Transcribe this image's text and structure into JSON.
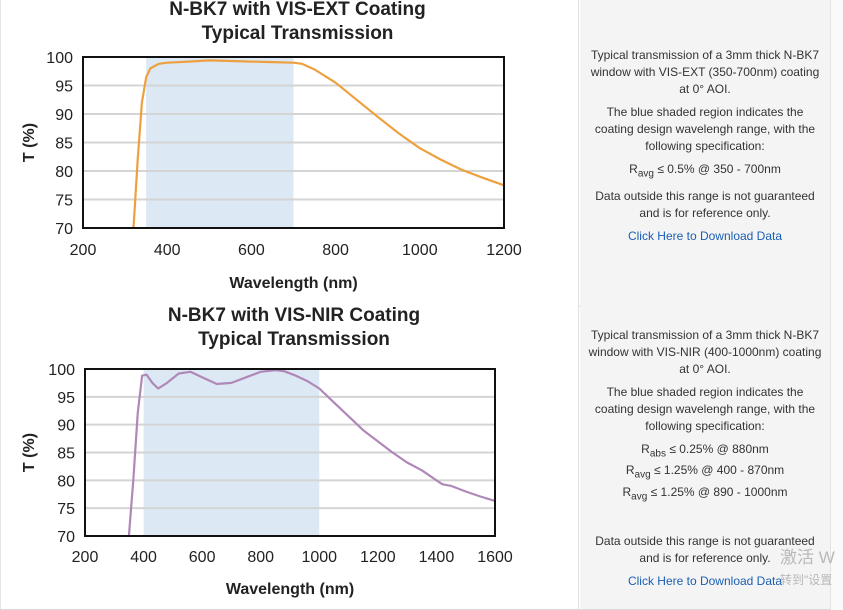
{
  "charts": [
    {
      "chart_data": {
        "type": "line",
        "title": "N-BK7 with VIS-EXT Coating",
        "subtitle": "Typical Transmission",
        "xlabel": "Wavelength (nm)",
        "ylabel": "T (%)",
        "xlim": [
          200,
          1200
        ],
        "ylim": [
          70,
          100
        ],
        "xticks": [
          "200",
          "400",
          "600",
          "800",
          "1000",
          "1200"
        ],
        "yticks": [
          "100",
          "95",
          "90",
          "85",
          "80",
          "75",
          "70"
        ],
        "shaded_range": [
          350,
          700
        ],
        "grid": true,
        "series": [
          {
            "name": "VIS-EXT",
            "color": "#eea03f",
            "x": [
              320,
              330,
              340,
              350,
              360,
              380,
              400,
              450,
              500,
              550,
              600,
              650,
              700,
              720,
              750,
              800,
              850,
              900,
              950,
              1000,
              1050,
              1100,
              1150,
              1200
            ],
            "y": [
              70,
              82,
              92,
              96.5,
              98,
              98.8,
              99,
              99.2,
              99.4,
              99.3,
              99.2,
              99.1,
              99,
              98.8,
              97.8,
              95.5,
              92.5,
              89.5,
              86.6,
              84,
              82,
              80.2,
              78.8,
              77.5
            ]
          }
        ]
      },
      "info": {
        "description": "Typical transmission of a 3mm thick N-BK7 window with VIS-EXT (350-700nm) coating at 0° AOI.",
        "shading_note": "The blue shaded region indicates the coating design wavelengh range, with the following specification:",
        "specs": [
          {
            "symbol": "R",
            "sub": "avg",
            "text": "≤ 0.5% @ 350 - 700nm"
          }
        ],
        "disclaimer": "Data outside this range is not guaranteed and is for reference only.",
        "link": "Click Here to Download Data"
      }
    },
    {
      "chart_data": {
        "type": "line",
        "title": "N-BK7 with VIS-NIR Coating",
        "subtitle": "Typical Transmission",
        "xlabel": "Wavelength (nm)",
        "ylabel": "T (%)",
        "xlim": [
          200,
          1600
        ],
        "ylim": [
          70,
          100
        ],
        "xticks": [
          "200",
          "400",
          "600",
          "800",
          "1000",
          "1200",
          "1400",
          "1600"
        ],
        "yticks": [
          "100",
          "95",
          "90",
          "85",
          "80",
          "75",
          "70"
        ],
        "shaded_range": [
          400,
          1000
        ],
        "grid": true,
        "series": [
          {
            "name": "VIS-NIR",
            "color": "#b088b8",
            "x": [
              350,
              365,
              380,
              395,
              410,
              430,
              450,
              480,
              520,
              560,
              600,
              650,
              700,
              750,
              800,
              850,
              880,
              920,
              960,
              1000,
              1050,
              1100,
              1150,
              1200,
              1250,
              1300,
              1350,
              1400,
              1420,
              1450,
              1500,
              1550,
              1600
            ],
            "y": [
              70,
              80,
              92,
              98.8,
              99,
              97.5,
              96.5,
              97.5,
              99.2,
              99.5,
              98.5,
              97.3,
              97.5,
              98.5,
              99.5,
              99.8,
              99.6,
              98.8,
              97.8,
              96.5,
              94,
              91.5,
              89,
              87,
              85,
              83.2,
              81.8,
              80,
              79.3,
              79,
              78,
              77.1,
              76.3
            ]
          }
        ]
      },
      "info": {
        "description": "Typical transmission of a 3mm thick N-BK7 window with VIS-NIR (400-1000nm) coating at 0° AOI.",
        "shading_note": "The blue shaded region indicates the coating design wavelengh range, with the following specification:",
        "specs": [
          {
            "symbol": "R",
            "sub": "abs",
            "text": "≤ 0.25% @ 880nm"
          },
          {
            "symbol": "R",
            "sub": "avg",
            "text": "≤ 1.25% @ 400 - 870nm"
          },
          {
            "symbol": "R",
            "sub": "avg",
            "text": "≤ 1.25% @ 890 - 1000nm"
          }
        ],
        "disclaimer": "Data outside this range is not guaranteed and is for reference only.",
        "link": "Click Here to Download Data"
      }
    }
  ],
  "colors": {
    "shade": "#dce9f5",
    "grid": "#d4d4d4",
    "link": "#1a5fb4"
  },
  "watermark": {
    "line1": "激活 W",
    "line2": "转到\"设置"
  }
}
